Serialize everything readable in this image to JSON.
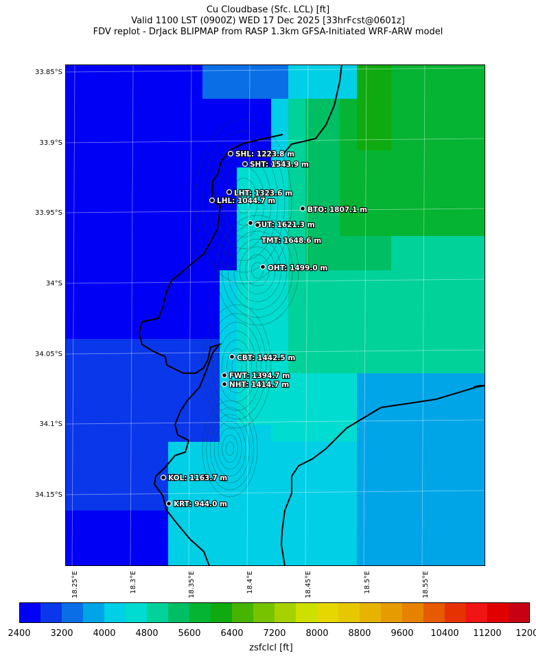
{
  "titles": {
    "line1": "Cu Cloudbase (Sfc. LCL) [ft]",
    "line2": "Valid 1100 LST (0900Z) WED 17 Dec 2025 [33hrFcst@0601z]",
    "line3": "FDV replot - DrJack BLIPMAP from RASP 1.3km GFSA-Initiated WRF-ARW model"
  },
  "lat_labels": [
    "33.85°S",
    "33.9°S",
    "33.95°S",
    "34°S",
    "34.05°S",
    "34.1°S",
    "34.15°S"
  ],
  "lon_labels": [
    "18.25°E",
    "18.3°E",
    "18.35°E",
    "18.4°E",
    "18.45°E",
    "18.5°E",
    "18.55°E"
  ],
  "stations": [
    {
      "label": "SHL: 1223.8 m"
    },
    {
      "label": "SHT: 1543.9 m"
    },
    {
      "label": "LHT: 1323.6 m"
    },
    {
      "label": "LHL: 1044.7 m"
    },
    {
      "label": "BTO: 1807.1 m"
    },
    {
      "label": "GUT: 1621.3 m"
    },
    {
      "label": "TMT: 1648.6 m"
    },
    {
      "label": "OHT: 1499.0 m"
    },
    {
      "label": "CBT: 1442.5 m"
    },
    {
      "label": "FWT: 1394.7 m"
    },
    {
      "label": "NHT: 1414.7 m"
    },
    {
      "label": "KOL: 1163.7 m"
    },
    {
      "label": "KRT: 944.0 m"
    }
  ],
  "colorbar": {
    "title": "zsfclcl [ft]",
    "tick_labels": [
      "2400",
      "3200",
      "4000",
      "4800",
      "5600",
      "6400",
      "7200",
      "8000",
      "8800",
      "9600",
      "10400",
      "11200",
      "12000"
    ],
    "colors": [
      "#0000f5",
      "#0a37ea",
      "#0a6fe6",
      "#00a5e8",
      "#00cfe6",
      "#00dcd0",
      "#00d29a",
      "#00be64",
      "#05b432",
      "#0faa0f",
      "#46b400",
      "#78c300",
      "#a5d200",
      "#cde100",
      "#e6d700",
      "#e6c800",
      "#e6b400",
      "#e69b00",
      "#e68200",
      "#e65a00",
      "#e63200",
      "#f01414",
      "#e10000",
      "#c80014"
    ]
  }
}
